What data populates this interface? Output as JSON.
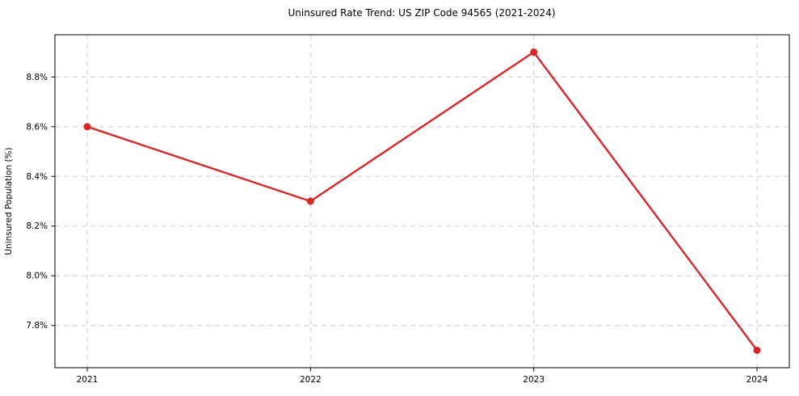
{
  "figure": {
    "background": "#ffffff"
  },
  "chart_data": {
    "type": "line",
    "title": "Uninsured Rate Trend: US ZIP Code 94565 (2021-2024)",
    "xlabel": "",
    "ylabel": "Uninsured Population (%)",
    "categories": [
      "2021",
      "2022",
      "2023",
      "2024"
    ],
    "values": [
      8.6,
      8.3,
      8.9,
      7.7
    ],
    "ylim": [
      7.63,
      8.97
    ],
    "yticks": [
      7.8,
      8.0,
      8.2,
      8.4,
      8.6,
      8.8
    ],
    "ytick_labels": [
      "7.8%",
      "8.0%",
      "8.2%",
      "8.4%",
      "8.6%",
      "8.8%"
    ],
    "grid": true,
    "grid_style": "dashed",
    "legend_position": "none",
    "line_color": "#d62728",
    "marker": "circle",
    "grid_color": "#cdcdcd",
    "axis_color": "#000000",
    "text_color": "#000000"
  }
}
